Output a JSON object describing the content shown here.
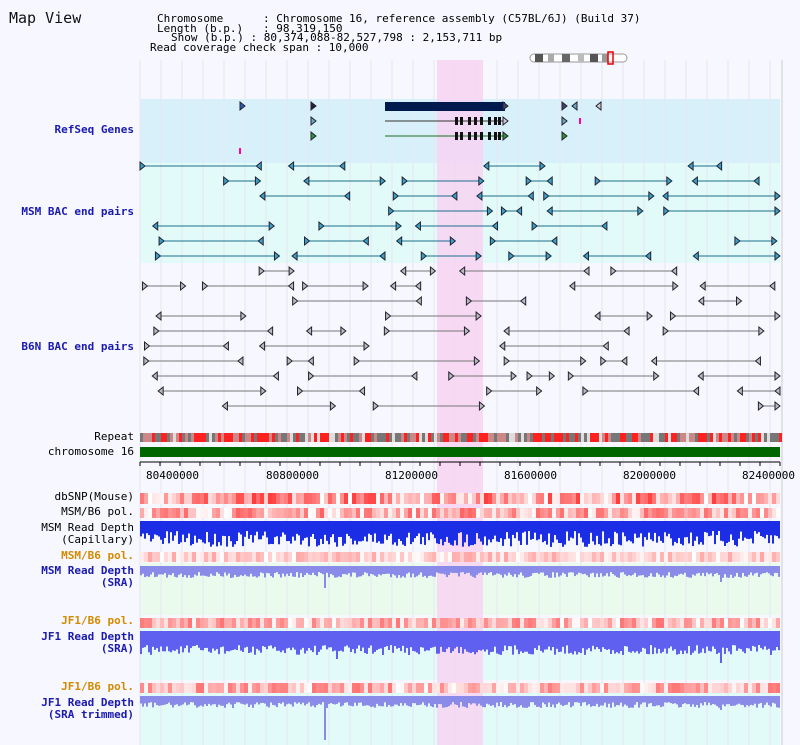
{
  "window": {
    "title": "Map View"
  },
  "header": {
    "line1_key": "Chromosome      ",
    "line1_val": ": Chromosome 16, reference assembly (C57BL/6J) (Build 37)",
    "line2_key": "Length (b.p.)",
    "line2_val": ": 98,319,150",
    "line3_key": "Show (b.p.)",
    "line3_val": ": 80,374,088-82,527,798 : 2,153,711 bp",
    "line4": "Read coverage check span : 10,000"
  },
  "tracks": {
    "refseq": "RefSeq Genes",
    "msm_bac": "MSM BAC end pairs",
    "b6n_bac": "B6N BAC end pairs",
    "repeat": "Repeat",
    "chromosome": "chromosome 16",
    "dbsnp": "dbSNP(Mouse)",
    "msm_b6_pol_1": "MSM/B6 pol.",
    "msm_depth_cap_1": "MSM Read Depth",
    "msm_depth_cap_2": "(Capillary)",
    "msm_b6_pol_2": "MSM/B6 pol.",
    "msm_depth_sra_1": "MSM Read Depth",
    "msm_depth_sra_2": "(SRA)",
    "jf1_b6_pol_1": "JF1/B6 pol.",
    "jf1_depth_sra_1": "JF1 Read Depth",
    "jf1_depth_sra_2": "(SRA)",
    "jf1_b6_pol_2": "JF1/B6 pol.",
    "jf1_depth_trim_1": "JF1 Read Depth",
    "jf1_depth_trim_2": "(SRA trimmed)"
  },
  "axis": {
    "ticks": [
      "80400000",
      "80800000",
      "81200000",
      "81600000",
      "82000000",
      "82400000"
    ]
  },
  "colors": {
    "highlight": "#f7d4f2",
    "refseq_bg": "#d8f0fa",
    "bac_bg": "#e2fbf8",
    "gene_dark": "#001a4d",
    "msm_feature": "#1c6e8c",
    "b6n_feature": "#777777",
    "chromosome_bar": "#006600",
    "depth_blue": "#1a1aff"
  }
}
